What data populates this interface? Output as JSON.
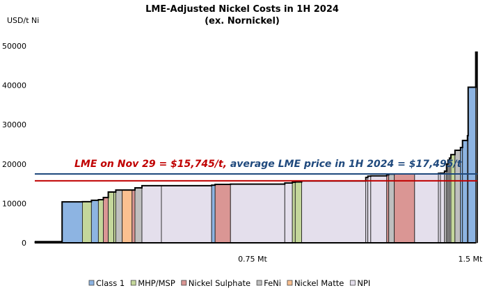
{
  "chart_data": {
    "type": "bar",
    "subtype": "cost-curve",
    "title": "LME-Adjusted Nickel Costs in 1H 2024",
    "subtitle": "(ex. Nornickel)",
    "ylabel": "USD/t Ni",
    "ylim": [
      0,
      50000
    ],
    "yticks": [
      0,
      10000,
      20000,
      30000,
      40000,
      50000
    ],
    "xlim_mt": [
      0,
      1.52
    ],
    "xticks": [
      {
        "value": 0.75,
        "label": "0.75 Mt"
      },
      {
        "value": 1.5,
        "label": "1.5 Mt"
      }
    ],
    "grid": false,
    "legend_position": "bottom",
    "categories": [
      {
        "key": "class1",
        "name": "Class 1",
        "color": "#8DB4E2"
      },
      {
        "key": "mhp",
        "name": "MHP/MSP",
        "color": "#C4D79B"
      },
      {
        "key": "sulphate",
        "name": "Nickel Sulphate",
        "color": "#DA9694"
      },
      {
        "key": "feni",
        "name": "FeNi",
        "color": "#BFBFBF"
      },
      {
        "key": "matte",
        "name": "Nickel Matte",
        "color": "#FAC090"
      },
      {
        "key": "npi",
        "name": "NPI",
        "color": "#E4DFEC"
      }
    ],
    "other_color": "#222222",
    "segments_columns": [
      "width_kt",
      "cost_usd_t",
      "type"
    ],
    "segments": [
      [
        94,
        300,
        "other"
      ],
      [
        70,
        10400,
        "class1"
      ],
      [
        31,
        10450,
        "mhp"
      ],
      [
        24,
        10800,
        "class1"
      ],
      [
        17,
        10950,
        "mhp"
      ],
      [
        17,
        11500,
        "sulphate"
      ],
      [
        19,
        12900,
        "mhp"
      ],
      [
        7,
        12900,
        "mhp"
      ],
      [
        22,
        13400,
        "feni"
      ],
      [
        34,
        13400,
        "matte"
      ],
      [
        10,
        13400,
        "sulphate"
      ],
      [
        24,
        13950,
        "feni"
      ],
      [
        67,
        14500,
        "npi"
      ],
      [
        173,
        14500,
        "npi"
      ],
      [
        12,
        14650,
        "class1"
      ],
      [
        53,
        14850,
        "sulphate"
      ],
      [
        187,
        14900,
        "npi"
      ],
      [
        26,
        15200,
        "npi"
      ],
      [
        10,
        15400,
        "mhp"
      ],
      [
        22,
        15450,
        "mhp"
      ],
      [
        221,
        15700,
        "npi"
      ],
      [
        7,
        16600,
        "npi"
      ],
      [
        10,
        16950,
        "npi"
      ],
      [
        55,
        17000,
        "npi"
      ],
      [
        7,
        17300,
        "sulphate"
      ],
      [
        19,
        17450,
        "feni"
      ],
      [
        70,
        17500,
        "sulphate"
      ],
      [
        82,
        17500,
        "npi"
      ],
      [
        7,
        17650,
        "npi"
      ],
      [
        14,
        17700,
        "npi"
      ],
      [
        7,
        18200,
        "feni"
      ],
      [
        5,
        20000,
        "feni"
      ],
      [
        5,
        21000,
        "feni"
      ],
      [
        5,
        21500,
        "feni"
      ],
      [
        14,
        22400,
        "mhp"
      ],
      [
        19,
        23500,
        "feni"
      ],
      [
        7,
        24200,
        "class1"
      ],
      [
        17,
        26000,
        "class1"
      ],
      [
        2.4,
        27200,
        "class1"
      ],
      [
        26,
        39500,
        "class1"
      ],
      [
        5,
        48400,
        "feni"
      ]
    ],
    "reference_lines": [
      {
        "key": "spot",
        "value": 15745,
        "color": "#C00000",
        "label": "LME on Nov 29 = $15,745/t,"
      },
      {
        "key": "avg",
        "value": 17495,
        "color": "#1F497D",
        "label": "average LME price in 1H 2024 = $17,495/t"
      }
    ]
  }
}
